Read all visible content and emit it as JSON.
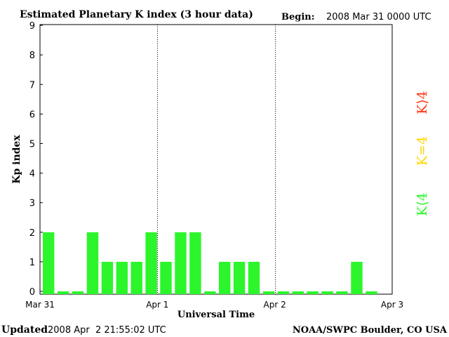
{
  "chart_data": {
    "type": "bar",
    "title": "Estimated Planetary K index (3 hour data)",
    "begin_label": "Begin:",
    "begin_value": "2008 Mar 31 0000 UTC",
    "ylabel": "Kp index",
    "xlabel": "Universal Time",
    "ylim": [
      0,
      9
    ],
    "yticks": [
      "0",
      "1",
      "2",
      "3",
      "4",
      "5",
      "6",
      "7",
      "8",
      "9"
    ],
    "xticks": [
      "Mar 31",
      "Apr 1",
      "Apr 2",
      "Apr 3"
    ],
    "values": [
      2,
      0,
      0,
      2,
      1,
      1,
      1,
      2,
      1,
      2,
      2,
      0,
      1,
      1,
      1,
      0,
      0,
      0,
      0,
      0,
      0,
      1,
      0
    ],
    "colors": {
      "low": "#2cf52c",
      "equal": "#ffd700",
      "high": "#ff3a1a"
    },
    "legend": {
      "high": "K⟩4",
      "equal": "K=4",
      "low": "K⟨4"
    },
    "footer_left_label": "Updated",
    "footer_left_value": "2008 Apr  2 21:55:02 UTC",
    "footer_right": "NOAA/SWPC Boulder, CO USA"
  }
}
